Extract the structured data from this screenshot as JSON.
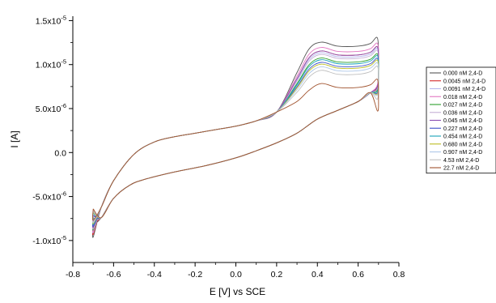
{
  "chart_data": {
    "type": "line",
    "xlabel": "E [V] vs SCE",
    "ylabel": "I [A]",
    "xlim": [
      -0.8,
      0.8
    ],
    "ylim": [
      -1.25e-05,
      1.55e-05
    ],
    "x_ticks": [
      -0.8,
      -0.6,
      -0.4,
      -0.2,
      0.0,
      0.2,
      0.4,
      0.6,
      0.8
    ],
    "x_tick_labels": [
      "-0.8",
      "-0.6",
      "-0.4",
      "-0.2",
      "0.0",
      "0.2",
      "0.4",
      "0.6",
      "0.8"
    ],
    "y_ticks": [
      -1e-05,
      -5e-06,
      0.0,
      5e-06,
      1e-05,
      1.5e-05
    ],
    "y_tick_labels": [
      {
        "mant": "-1.0x10",
        "exp": "-5"
      },
      {
        "mant": "-5.0x10",
        "exp": "-6"
      },
      {
        "mant": "0.0",
        "exp": ""
      },
      {
        "mant": "5.0x10",
        "exp": "-6"
      },
      {
        "mant": "1.0x10",
        "exp": "-5"
      },
      {
        "mant": "1.5x10",
        "exp": "-5"
      }
    ],
    "grid": false,
    "legend_position": "right",
    "series": [
      {
        "name": "0.000 nM 2,4-D",
        "color": "#555555",
        "peak": 1.3e-05,
        "end": 1e-05,
        "min": -9.6e-06
      },
      {
        "name": "0.0045 nM 2,4-D",
        "color": "#d62728",
        "peak": 1.2e-05,
        "end": 9.7e-06,
        "min": -9.3e-06
      },
      {
        "name": "0.0091 nM 2,4-D",
        "color": "#b7b7ee",
        "peak": 1.18e-05,
        "end": 9.5e-06,
        "min": -9.1e-06
      },
      {
        "name": "0.018 nM 2,4-D",
        "color": "#e377c2",
        "peak": 1.24e-05,
        "end": 1.02e-05,
        "min": -9e-06
      },
      {
        "name": "0.027 nM 2,4-D",
        "color": "#2ca02c",
        "peak": 1.12e-05,
        "end": 9.4e-06,
        "min": -8.8e-06
      },
      {
        "name": "0.036 nM 2,4-D",
        "color": "#c5b0d5",
        "peak": 1.16e-05,
        "end": 9.6e-06,
        "min": -8.7e-06
      },
      {
        "name": "0.045 nM 2,4-D",
        "color": "#8a4fb3",
        "peak": 1.2e-05,
        "end": 9.9e-06,
        "min": -8.5e-06
      },
      {
        "name": "0.227 nM 2,4-D",
        "color": "#3c50c8",
        "peak": 1.07e-05,
        "end": 9e-06,
        "min": -8.4e-06
      },
      {
        "name": "0.454 nM 2,4-D",
        "color": "#17a2b8",
        "peak": 1.1e-05,
        "end": 9.2e-06,
        "min": -8.2e-06
      },
      {
        "name": "0.680 nM 2,4-D",
        "color": "#bcbd22",
        "peak": 1.05e-05,
        "end": 8.8e-06,
        "min": -8.1e-06
      },
      {
        "name": "0.907 nM 2,4-D",
        "color": "#aec7e8",
        "peak": 1.02e-05,
        "end": 8.6e-06,
        "min": -8e-06
      },
      {
        "name": "4.53 nM 2,4-D",
        "color": "#c0c0c0",
        "peak": 9.8e-06,
        "end": 8e-06,
        "min": -7.9e-06
      },
      {
        "name": "22.7 nM 2,4-D",
        "color": "#a0522d",
        "peak": 8.3e-06,
        "end": 6.2e-06,
        "min": -7.7e-06
      }
    ]
  }
}
